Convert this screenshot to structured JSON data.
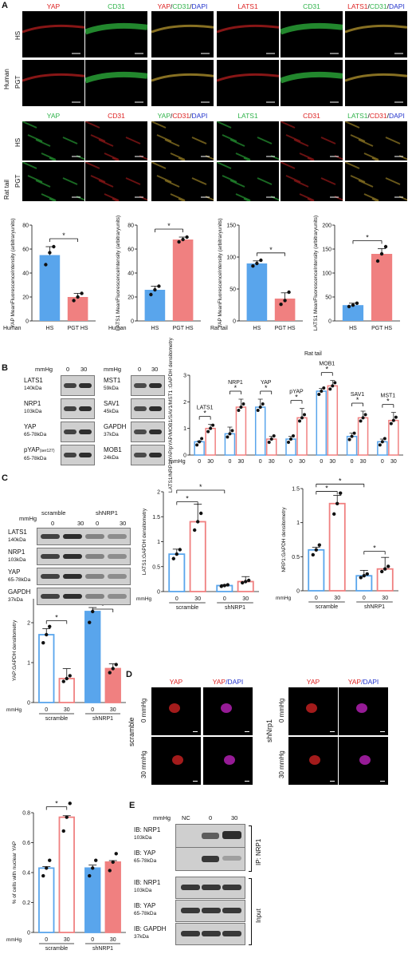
{
  "panels": {
    "A": "A",
    "B": "B",
    "C": "C",
    "D": "D",
    "E": "E"
  },
  "colors": {
    "blue": "#59a5ec",
    "red": "#f08080",
    "green": "#2fb34a",
    "redtext": "#d22",
    "dapi": "#2233cc"
  },
  "A": {
    "human_cols": [
      {
        "text": "YAP",
        "color": "red"
      },
      {
        "text": "CD31",
        "color": "green"
      },
      {
        "parts": [
          {
            "t": "YAP",
            "c": "red"
          },
          {
            "t": "/",
            "c": "black"
          },
          {
            "t": "CD31",
            "c": "green"
          },
          {
            "t": "/",
            "c": "black"
          },
          {
            "t": "DAPI",
            "c": "blue"
          }
        ]
      },
      {
        "text": "LATS1",
        "color": "red"
      },
      {
        "text": "CD31",
        "color": "green"
      },
      {
        "parts": [
          {
            "t": "LATS1",
            "c": "red"
          },
          {
            "t": "/",
            "c": "black"
          },
          {
            "t": "CD31",
            "c": "green"
          },
          {
            "t": "/",
            "c": "black"
          },
          {
            "t": "DAPI",
            "c": "blue"
          }
        ]
      }
    ],
    "rat_cols": [
      {
        "text": "YAP",
        "color": "green"
      },
      {
        "text": "CD31",
        "color": "red"
      },
      {
        "parts": [
          {
            "t": "YAP",
            "c": "green"
          },
          {
            "t": "/",
            "c": "black"
          },
          {
            "t": "CD31",
            "c": "red"
          },
          {
            "t": "/",
            "c": "black"
          },
          {
            "t": "DAPI",
            "c": "blue"
          }
        ]
      },
      {
        "text": "LATS1",
        "color": "green"
      },
      {
        "text": "CD31",
        "color": "red"
      },
      {
        "parts": [
          {
            "t": "LATS1",
            "c": "green"
          },
          {
            "t": "/",
            "c": "black"
          },
          {
            "t": "CD31",
            "c": "red"
          },
          {
            "t": "/",
            "c": "black"
          },
          {
            "t": "DAPI",
            "c": "blue"
          }
        ]
      }
    ],
    "human_label": "Human",
    "rat_label": "Rat tail",
    "row_hs": "HS",
    "row_pgt": "PGT"
  },
  "chart_data": [
    {
      "type": "bar",
      "id": "A1",
      "ylabel": "YAP MeanFluorescenceIntensity (arbitraryunits)",
      "categories": [
        "HS",
        "PGT HS"
      ],
      "values": [
        55,
        20
      ],
      "errors": [
        7,
        3
      ],
      "ylim": [
        0,
        80
      ],
      "yticks": [
        0,
        20,
        40,
        60,
        80
      ],
      "colors": [
        "#59a5ec",
        "#f08080"
      ],
      "filled": true,
      "points": [
        [
          47,
          57,
          62
        ],
        [
          17,
          20,
          23
        ]
      ],
      "group_label": "Human",
      "sig": "*"
    },
    {
      "type": "bar",
      "id": "A2",
      "ylabel": "LATS1 MeanFluorescenceIntensity (arbitraryunits)",
      "categories": [
        "HS",
        "PGT HS"
      ],
      "values": [
        26,
        68
      ],
      "errors": [
        3,
        2
      ],
      "ylim": [
        0,
        80
      ],
      "yticks": [
        0,
        20,
        40,
        60,
        80
      ],
      "colors": [
        "#59a5ec",
        "#f08080"
      ],
      "filled": true,
      "points": [
        [
          22,
          26,
          29
        ],
        [
          66,
          68,
          70
        ]
      ],
      "group_label": "Human",
      "sig": "*"
    },
    {
      "type": "bar",
      "id": "A3",
      "ylabel": "YAP MeanFluorescenceIntensity (arbitraryunits)",
      "categories": [
        "HS",
        "PGT HS"
      ],
      "values": [
        90,
        35
      ],
      "errors": [
        4,
        9
      ],
      "ylim": [
        0,
        150
      ],
      "yticks": [
        0,
        50,
        100,
        150
      ],
      "colors": [
        "#59a5ec",
        "#f08080"
      ],
      "filled": true,
      "points": [
        [
          86,
          90,
          95
        ],
        [
          26,
          32,
          45
        ]
      ],
      "group_label": "Rat tail",
      "sig": "*"
    },
    {
      "type": "bar",
      "id": "A4",
      "ylabel": "LATS1 MeanFluorescenceIntensity (arbitraryunits)",
      "categories": [
        "HS",
        "PGT HS"
      ],
      "values": [
        33,
        140
      ],
      "errors": [
        4,
        11
      ],
      "ylim": [
        0,
        200
      ],
      "yticks": [
        0,
        50,
        100,
        150,
        200
      ],
      "colors": [
        "#59a5ec",
        "#f08080"
      ],
      "filled": true,
      "points": [
        [
          30,
          33,
          37
        ],
        [
          125,
          140,
          155
        ]
      ],
      "group_label": "",
      "sig": "*"
    },
    {
      "type": "bar",
      "id": "B",
      "ylabel": "LATS1/NRP1/YAP/pYAP/MOB1/SAV1/MST1 :GAPDH densitometry",
      "groups": [
        "LATS1",
        "NRP1",
        "YAP",
        "pYAP",
        "MOB1",
        "SAV1",
        "MST1"
      ],
      "categories": [
        "0",
        "30"
      ],
      "xlabel": "mmHg",
      "values": [
        [
          0.5,
          1.0
        ],
        [
          0.8,
          1.8
        ],
        [
          1.8,
          0.6
        ],
        [
          0.6,
          1.4
        ],
        [
          2.4,
          2.6
        ],
        [
          0.7,
          1.4
        ],
        [
          0.5,
          1.3
        ]
      ],
      "errors": [
        [
          0.03,
          0.15
        ],
        [
          0.25,
          0.3
        ],
        [
          0.3,
          0.1
        ],
        [
          0.1,
          0.35
        ],
        [
          0.1,
          0.2
        ],
        [
          0.12,
          0.25
        ],
        [
          0.1,
          0.3
        ]
      ],
      "ylim": [
        0,
        3
      ],
      "yticks": [
        0,
        1,
        2,
        3
      ],
      "colors": [
        "#59a5ec",
        "#f08080"
      ],
      "filled": false,
      "sig": "*"
    },
    {
      "type": "bar",
      "id": "C1",
      "ylabel": "LATS1:GAPDH densitometry",
      "categories": [
        "0",
        "30",
        "0",
        "30"
      ],
      "groups": [
        "scramble",
        "shNRP1"
      ],
      "xlabel": "mmHg",
      "values": [
        0.75,
        1.4,
        0.12,
        0.2
      ],
      "errors": [
        0.1,
        0.35,
        0.02,
        0.1
      ],
      "ylim": [
        0,
        2.0
      ],
      "yticks": [
        0,
        0.5,
        1.0,
        1.5,
        2.0
      ],
      "colors": [
        "#59a5ec",
        "#f08080",
        "#59a5ec",
        "#f08080"
      ],
      "filled": false,
      "sig": "*"
    },
    {
      "type": "bar",
      "id": "C2",
      "ylabel": "NRP1:GAPDH densitometry",
      "categories": [
        "0",
        "30",
        "0",
        "30"
      ],
      "groups": [
        "scramble",
        "shNRP1"
      ],
      "xlabel": "mmHg",
      "values": [
        0.6,
        1.28,
        0.22,
        0.32
      ],
      "errors": [
        0.04,
        0.12,
        0.08,
        0.17
      ],
      "ylim": [
        0,
        1.5
      ],
      "yticks": [
        0,
        0.5,
        1.0,
        1.5
      ],
      "colors": [
        "#59a5ec",
        "#f08080",
        "#59a5ec",
        "#f08080"
      ],
      "filled": false,
      "sig": "*"
    },
    {
      "type": "bar",
      "id": "C3",
      "ylabel": "YAP:GAPDH densitometry",
      "categories": [
        "0",
        "30",
        "0",
        "30"
      ],
      "groups": [
        "scramble",
        "shNRP1"
      ],
      "xlabel": "mmHg",
      "values": [
        1.7,
        0.6,
        2.28,
        0.85
      ],
      "errors": [
        0.15,
        0.25,
        0.1,
        0.12
      ],
      "ylim": [
        0,
        2.6
      ],
      "yticks": [
        0,
        1,
        2
      ],
      "colors": [
        "#59a5ec",
        "#f08080",
        "#59a5ec",
        "#f08080"
      ],
      "filled": [
        false,
        false,
        true,
        true
      ],
      "sig": "*"
    },
    {
      "type": "bar",
      "id": "D2",
      "ylabel": "% of cells with nuclear YAP",
      "categories": [
        "0",
        "30",
        "0",
        "30"
      ],
      "groups": [
        "scramble",
        "shNRP1"
      ],
      "xlabel": "mmHg",
      "values": [
        0.43,
        0.77,
        0.43,
        0.47
      ],
      "errors": [
        0.01,
        0.01,
        0.02,
        0.01
      ],
      "ylim": [
        0,
        0.8
      ],
      "yticks": [
        0,
        0.2,
        0.4,
        0.6,
        0.8
      ],
      "colors": [
        "#59a5ec",
        "#f08080",
        "#59a5ec",
        "#f08080"
      ],
      "filled": [
        false,
        false,
        true,
        true
      ],
      "sig": "*"
    }
  ],
  "B": {
    "mmhg": "mmHg",
    "c0": "0",
    "c30": "30",
    "left_blots": [
      {
        "name": "LATS1",
        "kda": "140kDa"
      },
      {
        "name": "NRP1",
        "kda": "103kDa"
      },
      {
        "name": "YAP",
        "kda": "65-78kDa"
      },
      {
        "name": "pYAP",
        "sub": "(ser127)",
        "kda": "65-78kDa"
      }
    ],
    "right_blots": [
      {
        "name": "MST1",
        "kda": "59kDa"
      },
      {
        "name": "SAV1",
        "kda": "45kDa"
      },
      {
        "name": "GAPDH",
        "kda": "37kDa"
      },
      {
        "name": "MOB1",
        "kda": "24kDa"
      }
    ]
  },
  "C": {
    "mmhg": "mmHg",
    "scramble": "scramble",
    "shnrp1": "shNRP1",
    "c0": "0",
    "c30": "30",
    "blots": [
      {
        "name": "LATS1",
        "kda": "140kDa"
      },
      {
        "name": "NRP1",
        "kda": "103kDa"
      },
      {
        "name": "YAP",
        "kda": "65-78kDa"
      },
      {
        "name": "GAPDH",
        "kda": "37kDa"
      }
    ]
  },
  "D": {
    "yap": "YAP",
    "yapdapi_a": "YAP",
    "yapdapi_b": "/DAPI",
    "scramble": "scramble",
    "shnrp1": "shNrp1",
    "r0": "0 mmHg",
    "r30": "30 mmHg"
  },
  "E": {
    "mmhg": "mmHg",
    "nc": "NC",
    "c0": "0",
    "c30": "30",
    "rows": [
      {
        "name": "IB: NRP1",
        "kda": "103kDa"
      },
      {
        "name": "IB: YAP",
        "kda": "65-78kDa"
      },
      {
        "name": "IB: NRP1",
        "kda": "103kDa"
      },
      {
        "name": "IB: YAP",
        "kda": "65-78kDa"
      },
      {
        "name": "IB: GAPDH",
        "kda": "37kDa"
      }
    ],
    "ip": "IP: NRP1",
    "input": "Input"
  }
}
